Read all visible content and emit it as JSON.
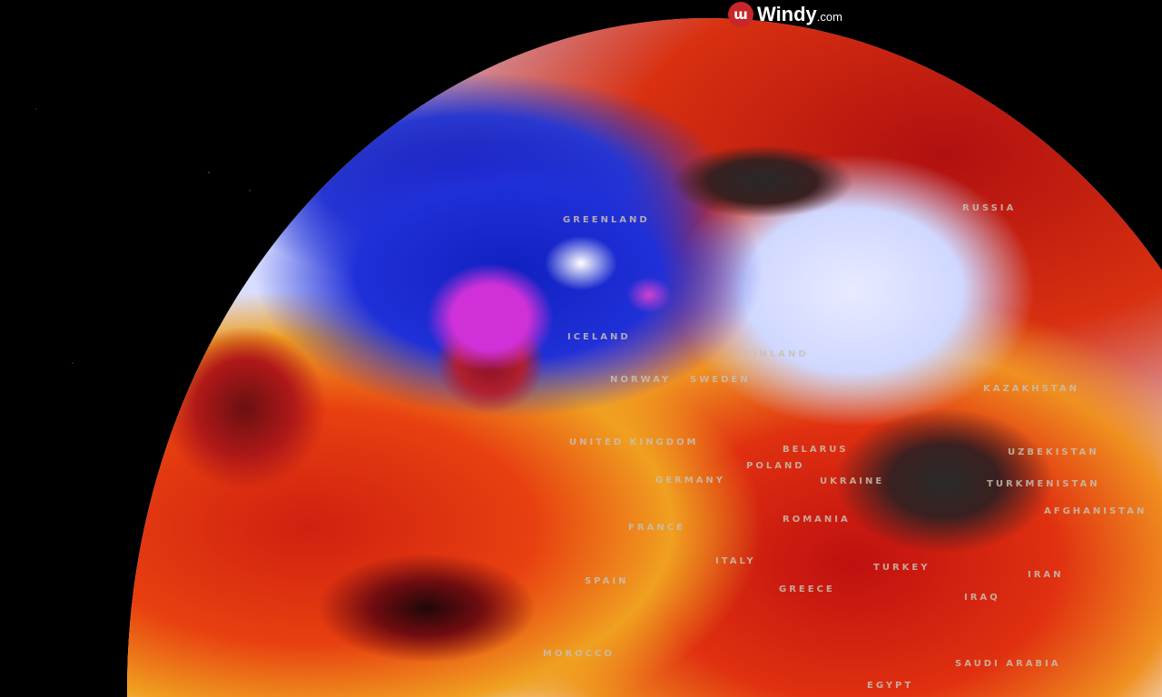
{
  "brand": {
    "name": "Windy",
    "suffix": ".com",
    "logo_icon": "windy-logo-icon",
    "accent": "#c8262a"
  },
  "map": {
    "layer_colors": {
      "cold": "#2030d8",
      "very_cold": "#d030d8",
      "warm": "#e84010",
      "hot": "#b01010",
      "extreme": "#2a2a2a"
    },
    "labels": [
      "GREENLAND",
      "ICELAND",
      "RUSSIA",
      "FINLAND",
      "NORWAY",
      "SWEDEN",
      "UNITED KINGDOM",
      "GERMANY",
      "POLAND",
      "BELARUS",
      "UKRAINE",
      "KAZAKHSTAN",
      "UZBEKISTAN",
      "TURKMENISTAN",
      "AFGHANISTAN",
      "ROMANIA",
      "FRANCE",
      "SPAIN",
      "ITALY",
      "GREECE",
      "TURKEY",
      "IRAN",
      "IRAQ",
      "MOROCCO",
      "SAUDI ARABIA",
      "EGYPT"
    ]
  }
}
